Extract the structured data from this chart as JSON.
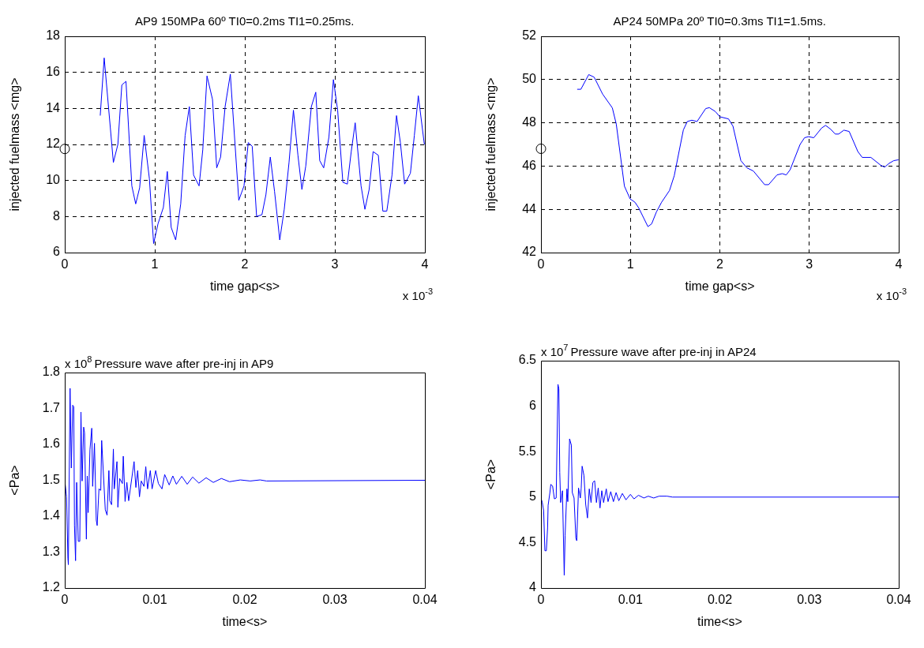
{
  "chart_data": [
    {
      "type": "line",
      "title": "AP9 150MPa 60º TI0=0.2ms TI1=0.25ms.",
      "xlabel": "time gap<s>",
      "ylabel": "injected fuelmass <mg>",
      "annotations": [
        "x 10$^{-3}$"
      ],
      "xlim": [
        0,
        4
      ],
      "xticks": [
        0,
        1,
        2,
        3,
        4
      ],
      "ylim": [
        6,
        18
      ],
      "yticks": [
        6,
        8,
        10,
        12,
        14,
        16,
        18
      ],
      "grid": true,
      "series": [
        {
          "color": "#0000ff",
          "x": [
            0.394,
            0.438,
            0.54,
            0.59,
            0.634,
            0.68,
            0.745,
            0.788,
            0.832,
            0.882,
            0.94,
            0.987,
            1.036,
            1.095,
            1.139,
            1.182,
            1.232,
            1.288,
            1.337,
            1.384,
            1.431,
            1.492,
            1.533,
            1.58,
            1.641,
            1.688,
            1.731,
            1.781,
            1.839,
            1.933,
            1.991,
            2.038,
            2.082,
            2.131,
            2.19,
            2.234,
            2.283,
            2.33,
            2.388,
            2.438,
            2.491,
            2.54,
            2.59,
            2.634,
            2.677,
            2.739,
            2.788,
            2.832,
            2.876,
            2.934,
            2.984,
            3.031,
            3.089,
            3.139,
            3.182,
            3.226,
            3.291,
            3.334,
            3.381,
            3.425,
            3.483,
            3.533,
            3.577,
            3.635,
            3.685,
            3.728,
            3.775,
            3.839,
            3.883,
            3.927,
            3.994
          ],
          "values": [
            13.6,
            16.8,
            11.0,
            12.0,
            15.3,
            15.5,
            9.7,
            8.7,
            9.6,
            12.5,
            10.1,
            6.5,
            7.6,
            8.5,
            10.5,
            7.4,
            6.7,
            8.7,
            12.5,
            14.1,
            10.3,
            9.7,
            11.7,
            15.8,
            14.5,
            10.7,
            11.3,
            14.1,
            15.9,
            8.9,
            9.7,
            12.1,
            11.9,
            8.0,
            8.1,
            9.2,
            11.3,
            9.4,
            6.7,
            8.4,
            11.0,
            13.9,
            11.4,
            9.5,
            10.8,
            14.1,
            14.9,
            11.1,
            10.7,
            12.4,
            15.6,
            13.9,
            9.9,
            9.8,
            11.6,
            13.2,
            9.7,
            8.4,
            9.5,
            11.6,
            11.4,
            8.3,
            8.3,
            10.3,
            13.6,
            12.1,
            9.8,
            10.4,
            12.5,
            14.7,
            12.0
          ]
        },
        {
          "type": "scatter",
          "marker": "circle",
          "color": "#000000",
          "x": [
            0
          ],
          "values": [
            11.75
          ]
        }
      ]
    },
    {
      "type": "line",
      "title": "AP24 50MPa 20º TI0=0.3ms TI1=1.5ms.",
      "xlabel": "time gap<s>",
      "ylabel": "injected fuelmass <mg>",
      "annotations": [
        "x 10$^{-3}$"
      ],
      "xlim": [
        0,
        4
      ],
      "xticks": [
        0,
        1,
        2,
        3,
        4
      ],
      "ylim": [
        42,
        52
      ],
      "yticks": [
        42,
        44,
        46,
        48,
        50,
        52
      ],
      "grid": true,
      "series": [
        {
          "color": "#0000ff",
          "x": [
            0.405,
            0.446,
            0.534,
            0.595,
            0.689,
            0.798,
            0.842,
            0.933,
            0.997,
            1.05,
            1.091,
            1.196,
            1.238,
            1.29,
            1.349,
            1.437,
            1.49,
            1.592,
            1.636,
            1.686,
            1.745,
            1.842,
            1.883,
            1.95,
            2.0,
            2.097,
            2.147,
            2.235,
            2.302,
            2.375,
            2.501,
            2.545,
            2.639,
            2.698,
            2.742,
            2.786,
            2.897,
            2.947,
            2.991,
            3.05,
            3.138,
            3.182,
            3.24,
            3.29,
            3.328,
            3.387,
            3.446,
            3.543,
            3.592,
            3.689,
            3.798,
            3.842,
            3.894,
            3.944,
            3.997
          ],
          "values": [
            49.55,
            49.55,
            50.23,
            50.11,
            49.33,
            48.69,
            47.94,
            45.07,
            44.48,
            44.33,
            44.08,
            43.2,
            43.33,
            43.87,
            44.33,
            44.87,
            45.55,
            47.67,
            48.06,
            48.12,
            48.06,
            48.66,
            48.7,
            48.52,
            48.28,
            48.18,
            47.84,
            46.25,
            45.92,
            45.77,
            45.14,
            45.14,
            45.59,
            45.65,
            45.59,
            45.83,
            47.0,
            47.31,
            47.36,
            47.31,
            47.76,
            47.88,
            47.7,
            47.48,
            47.48,
            47.66,
            47.6,
            46.67,
            46.4,
            46.4,
            46.04,
            45.95,
            46.13,
            46.25,
            46.29
          ]
        },
        {
          "type": "scatter",
          "marker": "circle",
          "color": "#000000",
          "x": [
            0
          ],
          "values": [
            46.8
          ]
        }
      ]
    },
    {
      "type": "line",
      "title": "Pressure wave after pre-inj in AP9",
      "xlabel": "time<s>",
      "ylabel": "<Pa>",
      "annotations": [
        "x 10$^{8}$"
      ],
      "xlim": [
        0,
        0.04
      ],
      "xticks": [
        0,
        0.01,
        0.02,
        0.03,
        0.04
      ],
      "ylim": [
        1.2,
        1.8
      ],
      "yticks": [
        1.2,
        1.3,
        1.4,
        1.5,
        1.6,
        1.7,
        1.8
      ],
      "series": [
        {
          "color": "#0000ff",
          "x": [
            0,
            0.0002,
            0.00035,
            0.0004,
            0.00059,
            0.00073,
            0.00088,
            0.001,
            0.00108,
            0.0012,
            0.00132,
            0.0015,
            0.00167,
            0.0018,
            0.00193,
            0.0021,
            0.0022,
            0.0024,
            0.0025,
            0.0026,
            0.0028,
            0.003,
            0.0031,
            0.0033,
            0.0035,
            0.0036,
            0.0038,
            0.004,
            0.0041,
            0.0045,
            0.0047,
            0.0049,
            0.005,
            0.0052,
            0.0054,
            0.0055,
            0.0058,
            0.0059,
            0.0061,
            0.0064,
            0.0065,
            0.0067,
            0.0069,
            0.0071,
            0.0077,
            0.0079,
            0.0081,
            0.0083,
            0.0085,
            0.0088,
            0.009,
            0.0092,
            0.0095,
            0.0097,
            0.0101,
            0.0104,
            0.0108,
            0.0111,
            0.0116,
            0.012,
            0.0124,
            0.013,
            0.0136,
            0.0142,
            0.0149,
            0.0157,
            0.0165,
            0.0174,
            0.0183,
            0.0195,
            0.0206,
            0.0217,
            0.0224,
            0.04
          ],
          "values": [
            1.5,
            1.454,
            1.283,
            1.265,
            1.756,
            1.534,
            1.709,
            1.705,
            1.374,
            1.276,
            1.494,
            1.33,
            1.33,
            1.69,
            1.498,
            1.648,
            1.632,
            1.336,
            1.512,
            1.41,
            1.585,
            1.645,
            1.483,
            1.603,
            1.389,
            1.374,
            1.476,
            1.472,
            1.611,
            1.418,
            1.403,
            1.527,
            1.443,
            1.432,
            1.587,
            1.476,
            1.552,
            1.425,
            1.505,
            1.491,
            1.567,
            1.441,
            1.494,
            1.443,
            1.552,
            1.48,
            1.527,
            1.454,
            1.498,
            1.483,
            1.538,
            1.476,
            1.527,
            1.476,
            1.527,
            1.491,
            1.476,
            1.516,
            1.487,
            1.512,
            1.489,
            1.511,
            1.489,
            1.509,
            1.492,
            1.507,
            1.494,
            1.505,
            1.496,
            1.501,
            1.498,
            1.501,
            1.498,
            1.5
          ]
        }
      ]
    },
    {
      "type": "line",
      "title": "Pressure wave after pre-inj in AP24",
      "xlabel": "time<s>",
      "ylabel": "<Pa>",
      "annotations": [
        "x 10$^{7}$"
      ],
      "xlim": [
        0,
        0.04
      ],
      "xticks": [
        0,
        0.01,
        0.02,
        0.03,
        0.04
      ],
      "ylim": [
        4,
        6.5
      ],
      "yticks": [
        4,
        4.5,
        5,
        5.5,
        6,
        6.5
      ],
      "series": [
        {
          "color": "#0000ff",
          "x": [
            0,
            0.00015,
            0.0003,
            0.00044,
            0.0006,
            0.00074,
            0.0008,
            0.001,
            0.0011,
            0.0013,
            0.0015,
            0.0017,
            0.0019,
            0.002,
            0.0021,
            0.0022,
            0.0024,
            0.0026,
            0.0027,
            0.0029,
            0.003,
            0.0032,
            0.0034,
            0.0035,
            0.0037,
            0.0039,
            0.004,
            0.0042,
            0.0044,
            0.0045,
            0.0046,
            0.0048,
            0.005,
            0.0052,
            0.0054,
            0.0056,
            0.0058,
            0.006,
            0.0062,
            0.0064,
            0.0066,
            0.0068,
            0.007,
            0.0073,
            0.0075,
            0.0078,
            0.0081,
            0.0084,
            0.0087,
            0.0091,
            0.0095,
            0.01,
            0.0104,
            0.0109,
            0.0115,
            0.012,
            0.0126,
            0.0132,
            0.0141,
            0.0147,
            0.04
          ],
          "values": [
            4.99,
            4.94,
            4.85,
            4.41,
            4.41,
            4.66,
            4.91,
            5.05,
            5.14,
            5.12,
            4.98,
            4.99,
            6.24,
            6.19,
            5.27,
            4.94,
            5.07,
            4.14,
            4.58,
            5.09,
            4.95,
            5.64,
            5.57,
            5.05,
            4.99,
            4.55,
            4.52,
            5.1,
            4.99,
            5.1,
            5.34,
            5.24,
            4.92,
            4.77,
            5.09,
            4.94,
            5.16,
            5.18,
            4.94,
            5.1,
            4.88,
            5.07,
            4.94,
            5.09,
            4.95,
            5.06,
            4.95,
            5.05,
            4.96,
            5.04,
            4.97,
            5.03,
            4.98,
            5.02,
            4.99,
            5.01,
            4.99,
            5.01,
            5.01,
            5.0,
            5.0
          ]
        }
      ]
    }
  ]
}
